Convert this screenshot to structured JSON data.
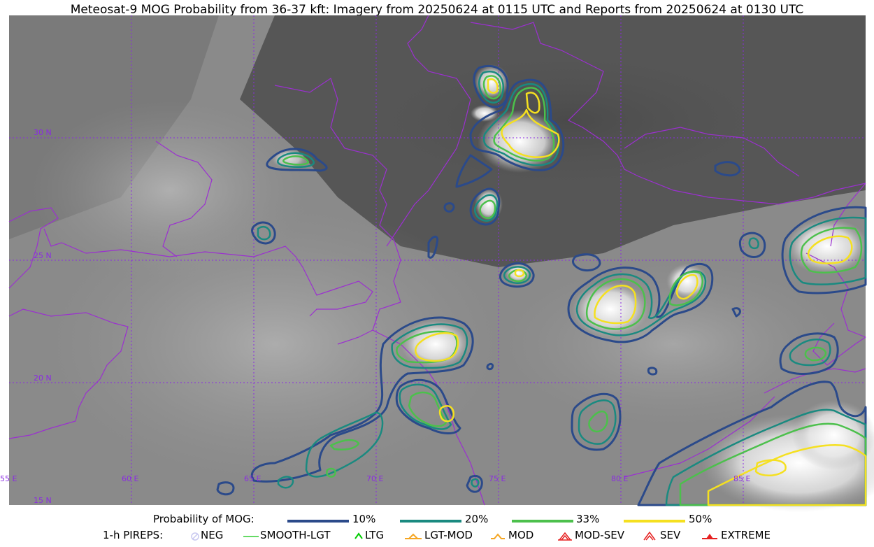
{
  "title": "Meteosat-9 MOG Probability from 36-37 kft: Imagery from 20250624 at 0115 UTC and Reports from 20250624 at 0130 UTC",
  "map": {
    "lon_labels": [
      "55 E",
      "60 E",
      "65 E",
      "70 E",
      "75 E",
      "80 E",
      "85 E"
    ],
    "lat_labels": [
      "30 N",
      "25 N",
      "20 N",
      "15 N"
    ],
    "colors": {
      "borders": "#9b30d0",
      "grid": "#8a2be2",
      "contour_10": "#2b4a8a",
      "contour_20": "#1a8a80",
      "contour_33": "#4cc04c",
      "contour_50": "#f5e020"
    }
  },
  "legend": {
    "probability": {
      "heading": "Probability of MOG:",
      "items": [
        {
          "label": "10%",
          "color": "#2b4a8a"
        },
        {
          "label": "20%",
          "color": "#1a8a80"
        },
        {
          "label": "33%",
          "color": "#4cc04c"
        },
        {
          "label": "50%",
          "color": "#f5e020"
        }
      ]
    },
    "pireps": {
      "heading": "1-h PIREPS:",
      "items": [
        {
          "label": "NEG",
          "icon": "neg-icon",
          "color": "#c8c8f0"
        },
        {
          "label": "SMOOTH-LGT",
          "icon": "smooth-lgt-icon",
          "color": "#32cd32"
        },
        {
          "label": "LTG",
          "icon": "ltg-icon",
          "color": "#00cc00"
        },
        {
          "label": "LGT-MOD",
          "icon": "lgt-mod-icon",
          "color": "#f5a623"
        },
        {
          "label": "MOD",
          "icon": "mod-icon",
          "color": "#f5a623"
        },
        {
          "label": "MOD-SEV",
          "icon": "mod-sev-icon",
          "color": "#e62020"
        },
        {
          "label": "SEV",
          "icon": "sev-icon",
          "color": "#e62020"
        },
        {
          "label": "EXTREME",
          "icon": "extreme-icon",
          "color": "#e62020"
        }
      ]
    }
  }
}
